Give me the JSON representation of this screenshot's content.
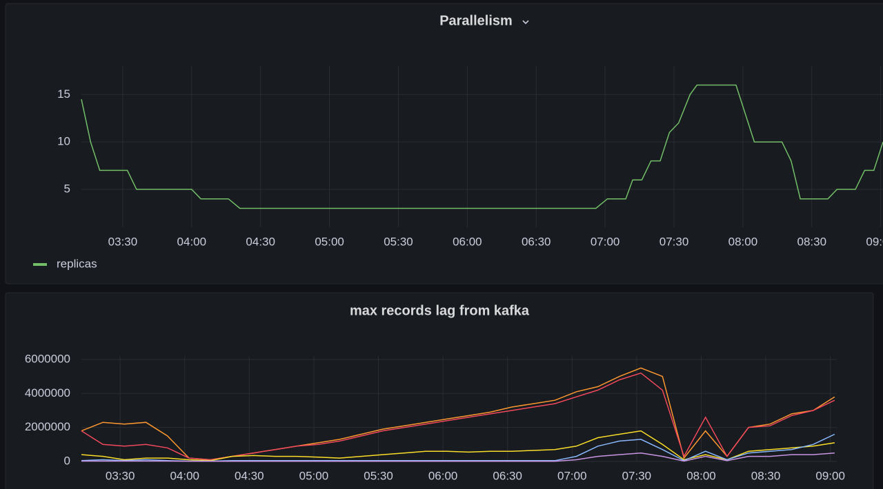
{
  "chart_data": [
    {
      "type": "line",
      "title": "Parallelism",
      "x": [
        "03:12",
        "03:16",
        "03:20",
        "03:32",
        "03:36",
        "04:00",
        "04:04",
        "04:16",
        "04:21",
        "06:56",
        "07:01",
        "07:09",
        "07:12",
        "07:16",
        "07:20",
        "07:24",
        "07:28",
        "07:32",
        "07:37",
        "07:40",
        "07:57",
        "08:05",
        "08:17",
        "08:21",
        "08:25",
        "08:37",
        "08:41",
        "08:49",
        "08:53",
        "08:57",
        "09:01"
      ],
      "series": [
        {
          "name": "replicas",
          "color": "#73bf69",
          "values": [
            14.5,
            10,
            7,
            7,
            5,
            5,
            4,
            4,
            3,
            3,
            4,
            4,
            6,
            6,
            8,
            8,
            11,
            12,
            15,
            16,
            16,
            10,
            10,
            8,
            4,
            4,
            5,
            5,
            7,
            7,
            10
          ]
        }
      ],
      "xlim": [
        "03:12",
        "09:01"
      ],
      "xticks": [
        "03:30",
        "04:00",
        "04:30",
        "05:00",
        "05:30",
        "06:00",
        "06:30",
        "07:00",
        "07:30",
        "08:00",
        "08:30",
        "09:00"
      ],
      "ylim": [
        1,
        18
      ],
      "yticks": [
        5,
        10,
        15
      ],
      "grid": true
    },
    {
      "type": "line",
      "title": "max records lag from kafka",
      "x": [
        "03:12",
        "03:22",
        "03:32",
        "03:42",
        "03:52",
        "04:02",
        "04:12",
        "04:22",
        "04:32",
        "04:42",
        "04:52",
        "05:02",
        "05:12",
        "05:22",
        "05:32",
        "05:42",
        "05:52",
        "06:02",
        "06:12",
        "06:22",
        "06:32",
        "06:42",
        "06:52",
        "07:02",
        "07:12",
        "07:22",
        "07:32",
        "07:42",
        "07:52",
        "08:02",
        "08:12",
        "08:22",
        "08:32",
        "08:42",
        "08:52",
        "09:02"
      ],
      "series": [
        {
          "color": "#ff9830",
          "values": [
            1800000,
            2300000,
            2200000,
            2300000,
            1500000,
            200000,
            100000,
            300000,
            500000,
            700000,
            900000,
            1100000,
            1300000,
            1600000,
            1900000,
            2100000,
            2300000,
            2500000,
            2700000,
            2900000,
            3200000,
            3400000,
            3600000,
            4100000,
            4400000,
            5000000,
            5500000,
            5000000,
            200000,
            1800000,
            300000,
            2000000,
            2200000,
            2800000,
            3000000,
            3800000
          ]
        },
        {
          "color": "#f2495c",
          "values": [
            1800000,
            1000000,
            900000,
            1000000,
            800000,
            200000,
            100000,
            300000,
            500000,
            700000,
            900000,
            1000000,
            1200000,
            1500000,
            1800000,
            2000000,
            2200000,
            2400000,
            2600000,
            2800000,
            3000000,
            3200000,
            3400000,
            3800000,
            4200000,
            4800000,
            5200000,
            4200000,
            300000,
            2600000,
            300000,
            2000000,
            2100000,
            2700000,
            3000000,
            3600000
          ]
        },
        {
          "color": "#fade2a",
          "values": [
            400000,
            300000,
            100000,
            200000,
            200000,
            100000,
            50000,
            300000,
            350000,
            300000,
            300000,
            250000,
            200000,
            300000,
            400000,
            500000,
            600000,
            600000,
            550000,
            600000,
            600000,
            650000,
            700000,
            900000,
            1400000,
            1600000,
            1800000,
            1000000,
            100000,
            400000,
            100000,
            600000,
            700000,
            800000,
            900000,
            1100000
          ]
        },
        {
          "color": "#8ab8ff",
          "values": [
            50000,
            100000,
            50000,
            100000,
            50000,
            20000,
            20000,
            50000,
            50000,
            50000,
            50000,
            50000,
            50000,
            50000,
            50000,
            50000,
            50000,
            50000,
            50000,
            50000,
            50000,
            50000,
            50000,
            300000,
            900000,
            1200000,
            1300000,
            700000,
            50000,
            600000,
            100000,
            500000,
            600000,
            700000,
            1000000,
            1600000
          ]
        },
        {
          "color": "#ca95e5",
          "values": [
            20000,
            20000,
            20000,
            20000,
            20000,
            10000,
            10000,
            10000,
            10000,
            10000,
            10000,
            10000,
            10000,
            10000,
            10000,
            10000,
            10000,
            10000,
            10000,
            10000,
            10000,
            10000,
            10000,
            100000,
            300000,
            400000,
            500000,
            300000,
            20000,
            300000,
            50000,
            300000,
            300000,
            400000,
            400000,
            500000
          ]
        }
      ],
      "xlim": [
        "03:12",
        "09:03"
      ],
      "xticks": [
        "03:30",
        "04:00",
        "04:30",
        "05:00",
        "05:30",
        "06:00",
        "06:30",
        "07:00",
        "07:30",
        "08:00",
        "08:30",
        "09:00"
      ],
      "ylim": [
        0,
        6200000
      ],
      "yticks": [
        0,
        2000000,
        4000000,
        6000000
      ],
      "grid": true
    }
  ]
}
